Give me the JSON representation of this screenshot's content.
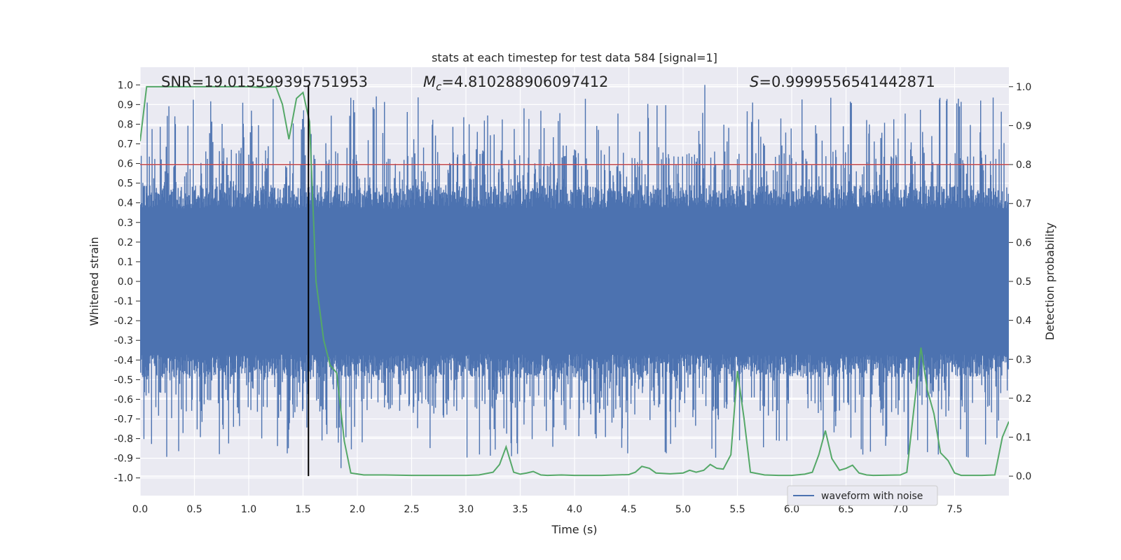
{
  "chart_data": {
    "type": "line",
    "title": "stats at each timestep for test data 584 [signal=1]",
    "xlabel": "Time (s)",
    "ylabel": "Whitened strain",
    "y2label": "Detection probability",
    "xlim": [
      0.0,
      8.0
    ],
    "ylim": [
      -1.09,
      1.09
    ],
    "y2lim": [
      -0.05,
      1.05
    ],
    "x_ticks": [
      0.0,
      0.5,
      1.0,
      1.5,
      2.0,
      2.5,
      3.0,
      3.5,
      4.0,
      4.5,
      5.0,
      5.5,
      6.0,
      6.5,
      7.0,
      7.5
    ],
    "x_tick_labels": [
      "0.0",
      "0.5",
      "1.0",
      "1.5",
      "2.0",
      "2.5",
      "3.0",
      "3.5",
      "4.0",
      "4.5",
      "5.0",
      "5.5",
      "6.0",
      "6.5",
      "7.0",
      "7.5"
    ],
    "y_ticks": [
      1.0,
      0.9,
      0.8,
      0.7,
      0.6,
      0.5,
      0.4,
      0.3,
      0.2,
      0.1,
      0.0,
      -0.1,
      -0.2,
      -0.3,
      -0.4,
      -0.5,
      -0.6,
      -0.7,
      -0.8,
      -0.9,
      -1.0
    ],
    "y_tick_labels": [
      "1.0",
      "0.9",
      "0.8",
      "0.7",
      "0.6",
      "0.5",
      "0.4",
      "0.3",
      "0.2",
      "0.1",
      "0.0",
      "-0.1",
      "-0.2",
      "-0.3",
      "-0.4",
      "-0.5",
      "-0.6",
      "-0.7",
      "-0.8",
      "-0.9",
      "-1.0"
    ],
    "y2_ticks": [
      1.0,
      0.9,
      0.8,
      0.7,
      0.6,
      0.5,
      0.4,
      0.3,
      0.2,
      0.1,
      0.0
    ],
    "y2_tick_labels": [
      "1.0",
      "0.9",
      "0.8",
      "0.7",
      "0.6",
      "0.5",
      "0.4",
      "0.3",
      "0.2",
      "0.1",
      "0.0"
    ],
    "annotations": {
      "snr": "SNR=19.013599395751953",
      "mc_symbol": "M",
      "mc_sub": "c",
      "mc_value": "=4.810288906097412",
      "s_symbol": "S",
      "s_value": "=0.9999556541442871"
    },
    "legend": {
      "position": "lower-right",
      "entries": [
        "waveform with noise"
      ]
    },
    "threshold_probability": 0.8,
    "peak_time": 1.55,
    "waveform": {
      "name": "waveform with noise",
      "color": "#4c72b0",
      "duration": 8.0,
      "samples": 1600,
      "core_amplitude": 0.37,
      "max_amplitude": 1.0,
      "min_amplitude": -0.95
    },
    "probability_series": {
      "name": "detection probability",
      "color": "#55a868",
      "t": [
        0.0,
        0.06,
        0.12,
        0.25,
        0.5,
        0.75,
        1.0,
        1.12,
        1.25,
        1.31,
        1.37,
        1.44,
        1.5,
        1.56,
        1.62,
        1.69,
        1.75,
        1.81,
        1.88,
        1.94,
        2.06,
        2.25,
        2.5,
        2.75,
        3.0,
        3.12,
        3.25,
        3.31,
        3.37,
        3.44,
        3.5,
        3.56,
        3.62,
        3.69,
        3.75,
        3.88,
        4.0,
        4.25,
        4.5,
        4.56,
        4.62,
        4.69,
        4.75,
        4.88,
        5.0,
        5.06,
        5.12,
        5.19,
        5.25,
        5.31,
        5.37,
        5.44,
        5.5,
        5.56,
        5.62,
        5.75,
        5.88,
        6.0,
        6.12,
        6.19,
        6.25,
        6.31,
        6.37,
        6.44,
        6.5,
        6.56,
        6.62,
        6.69,
        6.75,
        7.0,
        7.06,
        7.12,
        7.19,
        7.25,
        7.31,
        7.37,
        7.44,
        7.5,
        7.56,
        7.62,
        7.75,
        7.87,
        7.94,
        8.0
      ],
      "p": [
        0.86,
        1.0,
        1.0,
        1.0,
        1.0,
        1.0,
        1.0,
        0.998,
        1.0,
        0.955,
        0.865,
        0.97,
        0.985,
        0.91,
        0.5,
        0.35,
        0.285,
        0.265,
        0.09,
        0.008,
        0.003,
        0.003,
        0.002,
        0.002,
        0.002,
        0.003,
        0.01,
        0.03,
        0.075,
        0.01,
        0.005,
        0.008,
        0.012,
        0.003,
        0.002,
        0.003,
        0.002,
        0.002,
        0.004,
        0.01,
        0.025,
        0.02,
        0.008,
        0.006,
        0.008,
        0.015,
        0.01,
        0.015,
        0.03,
        0.02,
        0.018,
        0.055,
        0.27,
        0.15,
        0.01,
        0.003,
        0.002,
        0.002,
        0.005,
        0.01,
        0.055,
        0.117,
        0.045,
        0.015,
        0.02,
        0.028,
        0.008,
        0.003,
        0.002,
        0.003,
        0.01,
        0.16,
        0.33,
        0.22,
        0.16,
        0.06,
        0.04,
        0.008,
        0.002,
        0.002,
        0.002,
        0.003,
        0.1,
        0.14
      ]
    }
  }
}
